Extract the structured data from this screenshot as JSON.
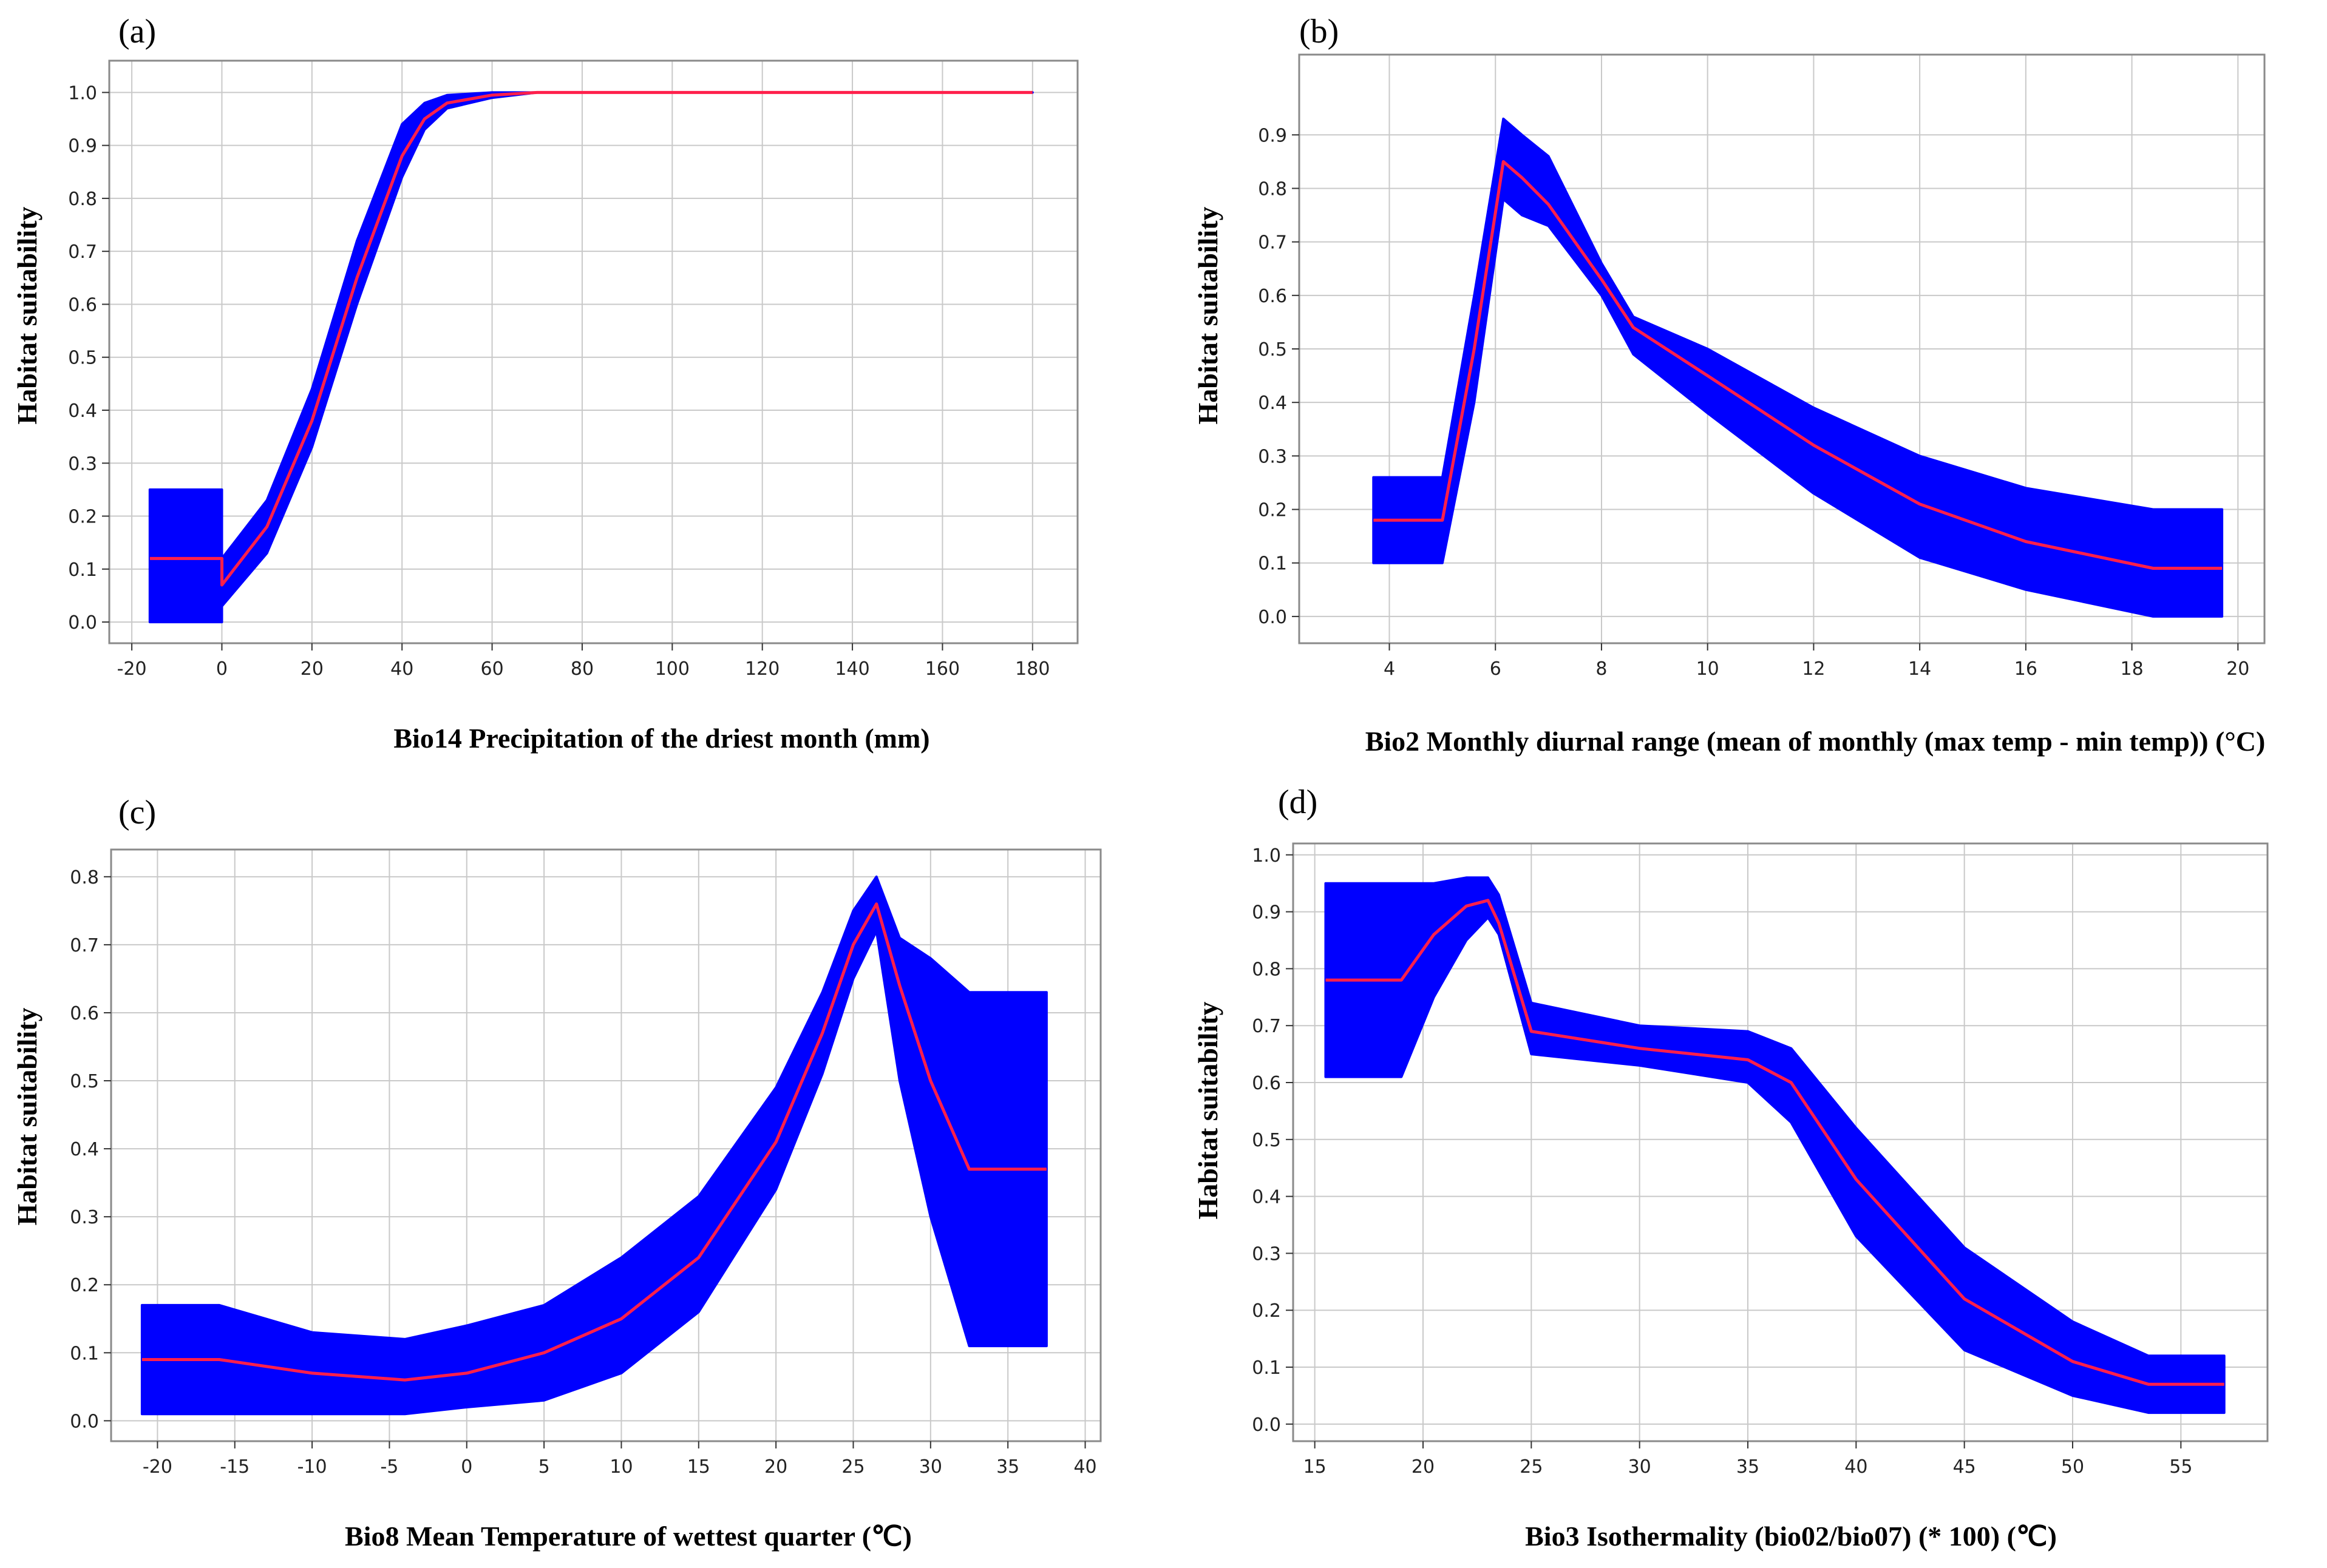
{
  "colors": {
    "band": "#0000ff",
    "line": "#ff1f4b",
    "grid": "#c9c9c9",
    "frame": "#8a8a8a"
  },
  "chart_data": [
    {
      "type": "line",
      "panel_label": "(a)",
      "xlabel": "Bio14 Precipitation of the driest month (mm)",
      "ylabel": "Habitat suitability",
      "xlim": [
        -25,
        190
      ],
      "ylim": [
        -0.04,
        1.06
      ],
      "xticks": [
        -20,
        0,
        20,
        40,
        60,
        80,
        100,
        120,
        140,
        160,
        180
      ],
      "xtick_labels": [
        "-20",
        "0",
        "20",
        "40",
        "60",
        "80",
        "100",
        "120",
        "140",
        "160",
        "180"
      ],
      "yticks": [
        0.0,
        0.1,
        0.2,
        0.3,
        0.4,
        0.5,
        0.6,
        0.7,
        0.8,
        0.9,
        1.0
      ],
      "ytick_labels": [
        "0.0",
        "0.1",
        "0.2",
        "0.3",
        "0.4",
        "0.5",
        "0.6",
        "0.7",
        "0.8",
        "0.9",
        "1.0"
      ],
      "series": [
        {
          "name": "mean response",
          "x": [
            -16,
            0,
            0,
            10,
            20,
            30,
            40,
            45,
            50,
            60,
            70,
            80,
            180
          ],
          "values": [
            0.12,
            0.12,
            0.07,
            0.18,
            0.38,
            0.65,
            0.88,
            0.95,
            0.98,
            0.995,
            1.0,
            1.0,
            1.0
          ]
        },
        {
          "name": "mean - sd",
          "x": [
            -16,
            0,
            0,
            10,
            20,
            30,
            40,
            45,
            50,
            60,
            70,
            80,
            180
          ],
          "values": [
            0.0,
            0.0,
            0.03,
            0.13,
            0.33,
            0.6,
            0.84,
            0.93,
            0.97,
            0.99,
            1.0,
            1.0,
            1.0
          ]
        },
        {
          "name": "mean + sd",
          "x": [
            -16,
            0,
            0,
            10,
            20,
            30,
            40,
            45,
            50,
            60,
            70,
            80,
            180
          ],
          "values": [
            0.25,
            0.25,
            0.12,
            0.23,
            0.44,
            0.72,
            0.94,
            0.98,
            0.995,
            1.0,
            1.0,
            1.0,
            1.0
          ]
        }
      ]
    },
    {
      "type": "line",
      "panel_label": "(b)",
      "xlabel": "Bio2 Monthly diurnal range (mean of monthly (max temp - min temp)) (°C)",
      "ylabel": "Habitat suitability",
      "xlim": [
        2.3,
        20.5
      ],
      "ylim": [
        -0.05,
        1.05
      ],
      "xticks": [
        4,
        6,
        8,
        10,
        12,
        14,
        16,
        18,
        20
      ],
      "xtick_labels": [
        "4",
        "6",
        "8",
        "10",
        "12",
        "14",
        "16",
        "18",
        "20"
      ],
      "yticks": [
        0.0,
        0.1,
        0.2,
        0.3,
        0.4,
        0.5,
        0.6,
        0.7,
        0.8,
        0.9
      ],
      "ytick_labels": [
        "0.0",
        "0.1",
        "0.2",
        "0.3",
        "0.4",
        "0.5",
        "0.6",
        "0.7",
        "0.8",
        "0.9"
      ],
      "series": [
        {
          "name": "mean response",
          "x": [
            3.7,
            5.0,
            5.6,
            6.15,
            6.5,
            7.0,
            8.0,
            8.6,
            10.0,
            12.0,
            14.0,
            16.0,
            18.4,
            19.7
          ],
          "values": [
            0.18,
            0.18,
            0.5,
            0.85,
            0.82,
            0.77,
            0.63,
            0.54,
            0.45,
            0.32,
            0.21,
            0.14,
            0.09,
            0.09
          ]
        },
        {
          "name": "mean - sd",
          "x": [
            3.7,
            5.0,
            5.6,
            6.15,
            6.5,
            7.0,
            8.0,
            8.6,
            10.0,
            12.0,
            14.0,
            16.0,
            18.4,
            19.7
          ],
          "values": [
            0.1,
            0.1,
            0.4,
            0.78,
            0.75,
            0.73,
            0.6,
            0.49,
            0.38,
            0.23,
            0.11,
            0.05,
            0.0,
            0.0
          ]
        },
        {
          "name": "mean + sd",
          "x": [
            3.7,
            5.0,
            5.6,
            6.15,
            6.5,
            7.0,
            8.0,
            8.6,
            10.0,
            12.0,
            14.0,
            16.0,
            18.4,
            19.7
          ],
          "values": [
            0.26,
            0.26,
            0.6,
            0.93,
            0.9,
            0.86,
            0.66,
            0.56,
            0.5,
            0.39,
            0.3,
            0.24,
            0.2,
            0.2
          ]
        }
      ]
    },
    {
      "type": "line",
      "panel_label": "(c)",
      "xlabel": "Bio8 Mean Temperature of wettest quarter (℃)",
      "ylabel": "Habitat suitability",
      "xlim": [
        -23,
        41
      ],
      "ylim": [
        -0.03,
        0.84
      ],
      "xticks": [
        -20,
        -15,
        -10,
        -5,
        0,
        5,
        10,
        15,
        20,
        25,
        30,
        35,
        40
      ],
      "xtick_labels": [
        "-20",
        "-15",
        "-10",
        "-5",
        "0",
        "5",
        "10",
        "15",
        "20",
        "25",
        "30",
        "35",
        "40"
      ],
      "yticks": [
        0.0,
        0.1,
        0.2,
        0.3,
        0.4,
        0.5,
        0.6,
        0.7,
        0.8
      ],
      "ytick_labels": [
        "0.0",
        "0.1",
        "0.2",
        "0.3",
        "0.4",
        "0.5",
        "0.6",
        "0.7",
        "0.8"
      ],
      "series": [
        {
          "name": "mean response",
          "x": [
            -21,
            -16,
            -10,
            -4,
            0,
            5,
            10,
            15,
            20,
            23,
            25,
            26.5,
            28,
            30,
            32.5,
            37.5
          ],
          "values": [
            0.09,
            0.09,
            0.07,
            0.06,
            0.07,
            0.1,
            0.15,
            0.24,
            0.41,
            0.57,
            0.7,
            0.76,
            0.64,
            0.5,
            0.37,
            0.37
          ]
        },
        {
          "name": "mean - sd",
          "x": [
            -21,
            -16,
            -10,
            -4,
            0,
            5,
            10,
            15,
            20,
            23,
            25,
            26.5,
            28,
            30,
            32.5,
            37.5
          ],
          "values": [
            0.01,
            0.01,
            0.01,
            0.01,
            0.02,
            0.03,
            0.07,
            0.16,
            0.34,
            0.51,
            0.65,
            0.72,
            0.5,
            0.3,
            0.11,
            0.11
          ]
        },
        {
          "name": "mean + sd",
          "x": [
            -21,
            -16,
            -10,
            -4,
            0,
            5,
            10,
            15,
            20,
            23,
            25,
            26.5,
            28,
            30,
            32.5,
            37.5
          ],
          "values": [
            0.17,
            0.17,
            0.13,
            0.12,
            0.14,
            0.17,
            0.24,
            0.33,
            0.49,
            0.63,
            0.75,
            0.8,
            0.71,
            0.68,
            0.63,
            0.63
          ]
        }
      ]
    },
    {
      "type": "line",
      "panel_label": "(d)",
      "xlabel": "Bio3 Isothermality (bio02/bio07) (* 100) (℃)",
      "ylabel": "Habitat suitability",
      "xlim": [
        14,
        59
      ],
      "ylim": [
        -0.03,
        1.02
      ],
      "xticks": [
        15,
        20,
        25,
        30,
        35,
        40,
        45,
        50,
        55
      ],
      "xtick_labels": [
        "15",
        "20",
        "25",
        "30",
        "35",
        "40",
        "45",
        "50",
        "55"
      ],
      "yticks": [
        0.0,
        0.1,
        0.2,
        0.3,
        0.4,
        0.5,
        0.6,
        0.7,
        0.8,
        0.9,
        1.0
      ],
      "ytick_labels": [
        "0.0",
        "0.1",
        "0.2",
        "0.3",
        "0.4",
        "0.5",
        "0.6",
        "0.7",
        "0.8",
        "0.9",
        "1.0"
      ],
      "series": [
        {
          "name": "mean response",
          "x": [
            15.5,
            19,
            20.5,
            22,
            23,
            23.5,
            25,
            30,
            35,
            37,
            40,
            45,
            50,
            53.5,
            57
          ],
          "values": [
            0.78,
            0.78,
            0.86,
            0.91,
            0.92,
            0.88,
            0.69,
            0.66,
            0.64,
            0.6,
            0.43,
            0.22,
            0.11,
            0.07,
            0.07
          ]
        },
        {
          "name": "mean - sd",
          "x": [
            15.5,
            19,
            20.5,
            22,
            23,
            23.5,
            25,
            30,
            35,
            37,
            40,
            45,
            50,
            53.5,
            57
          ],
          "values": [
            0.61,
            0.61,
            0.75,
            0.85,
            0.89,
            0.86,
            0.65,
            0.63,
            0.6,
            0.53,
            0.33,
            0.13,
            0.05,
            0.02,
            0.02
          ]
        },
        {
          "name": "mean + sd",
          "x": [
            15.5,
            19,
            20.5,
            22,
            23,
            23.5,
            25,
            30,
            35,
            37,
            40,
            45,
            50,
            53.5,
            57
          ],
          "values": [
            0.95,
            0.95,
            0.95,
            0.96,
            0.96,
            0.93,
            0.74,
            0.7,
            0.69,
            0.66,
            0.52,
            0.31,
            0.18,
            0.12,
            0.12
          ]
        }
      ]
    }
  ]
}
